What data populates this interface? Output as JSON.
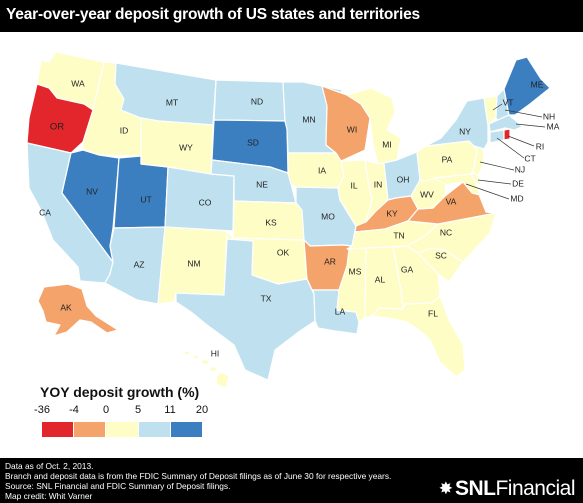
{
  "title": "Year-over-year deposit growth of US states and territories",
  "colors": {
    "bin_1": "#e3262b",
    "bin_2": "#f4a36b",
    "bin_3": "#fefdc6",
    "bin_4": "#bfe1ef",
    "bin_5": "#3c7fc1",
    "dark_text": "#111111"
  },
  "legend": {
    "title": "YOY deposit  growth (%)",
    "ticks": [
      "-36",
      "-4",
      "0",
      "5",
      "11",
      "20"
    ],
    "bins": [
      {
        "range": [
          -36,
          -4
        ],
        "color": "#e3262b"
      },
      {
        "range": [
          -4,
          0
        ],
        "color": "#f4a36b"
      },
      {
        "range": [
          0,
          5
        ],
        "color": "#fefdc6"
      },
      {
        "range": [
          5,
          11
        ],
        "color": "#bfe1ef"
      },
      {
        "range": [
          11,
          20
        ],
        "color": "#3c7fc1"
      }
    ]
  },
  "states": [
    {
      "abbr": "WA",
      "bin": 3
    },
    {
      "abbr": "OR",
      "bin": 1
    },
    {
      "abbr": "CA",
      "bin": 4
    },
    {
      "abbr": "ID",
      "bin": 3
    },
    {
      "abbr": "NV",
      "bin": 5
    },
    {
      "abbr": "UT",
      "bin": 5
    },
    {
      "abbr": "AZ",
      "bin": 4
    },
    {
      "abbr": "MT",
      "bin": 4
    },
    {
      "abbr": "WY",
      "bin": 3
    },
    {
      "abbr": "CO",
      "bin": 4
    },
    {
      "abbr": "NM",
      "bin": 3
    },
    {
      "abbr": "ND",
      "bin": 4
    },
    {
      "abbr": "SD",
      "bin": 5
    },
    {
      "abbr": "NE",
      "bin": 4
    },
    {
      "abbr": "KS",
      "bin": 3
    },
    {
      "abbr": "OK",
      "bin": 3
    },
    {
      "abbr": "TX",
      "bin": 4
    },
    {
      "abbr": "MN",
      "bin": 4
    },
    {
      "abbr": "IA",
      "bin": 3
    },
    {
      "abbr": "MO",
      "bin": 4
    },
    {
      "abbr": "AR",
      "bin": 2
    },
    {
      "abbr": "LA",
      "bin": 4
    },
    {
      "abbr": "WI",
      "bin": 2
    },
    {
      "abbr": "IL",
      "bin": 3
    },
    {
      "abbr": "MI",
      "bin": 3
    },
    {
      "abbr": "IN",
      "bin": 3
    },
    {
      "abbr": "OH",
      "bin": 4
    },
    {
      "abbr": "KY",
      "bin": 2
    },
    {
      "abbr": "TN",
      "bin": 3
    },
    {
      "abbr": "MS",
      "bin": 3
    },
    {
      "abbr": "AL",
      "bin": 3
    },
    {
      "abbr": "GA",
      "bin": 3
    },
    {
      "abbr": "FL",
      "bin": 3
    },
    {
      "abbr": "SC",
      "bin": 3
    },
    {
      "abbr": "NC",
      "bin": 3
    },
    {
      "abbr": "VA",
      "bin": 2
    },
    {
      "abbr": "WV",
      "bin": 3
    },
    {
      "abbr": "PA",
      "bin": 3
    },
    {
      "abbr": "NY",
      "bin": 4
    },
    {
      "abbr": "VT",
      "bin": 3
    },
    {
      "abbr": "NH",
      "bin": 4
    },
    {
      "abbr": "ME",
      "bin": 5
    },
    {
      "abbr": "MA",
      "bin": 4
    },
    {
      "abbr": "RI",
      "bin": 1
    },
    {
      "abbr": "CT",
      "bin": 4
    },
    {
      "abbr": "NJ",
      "bin": 3
    },
    {
      "abbr": "DE",
      "bin": 3
    },
    {
      "abbr": "MD",
      "bin": 3
    },
    {
      "abbr": "AK",
      "bin": 2
    },
    {
      "abbr": "HI",
      "bin": 3
    }
  ],
  "notes": [
    "Data as of Oct. 2, 2013.",
    "Branch and deposit data is from the FDIC Summary of Deposit filings as of June 30 for respective years.",
    "Source: SNL Financial and FDIC Summary of Deposit filings.",
    "Map credit: Whit Varner"
  ],
  "logo": {
    "bold": "SNL",
    "light": "Financial",
    "mark": "icon-snl-star"
  }
}
